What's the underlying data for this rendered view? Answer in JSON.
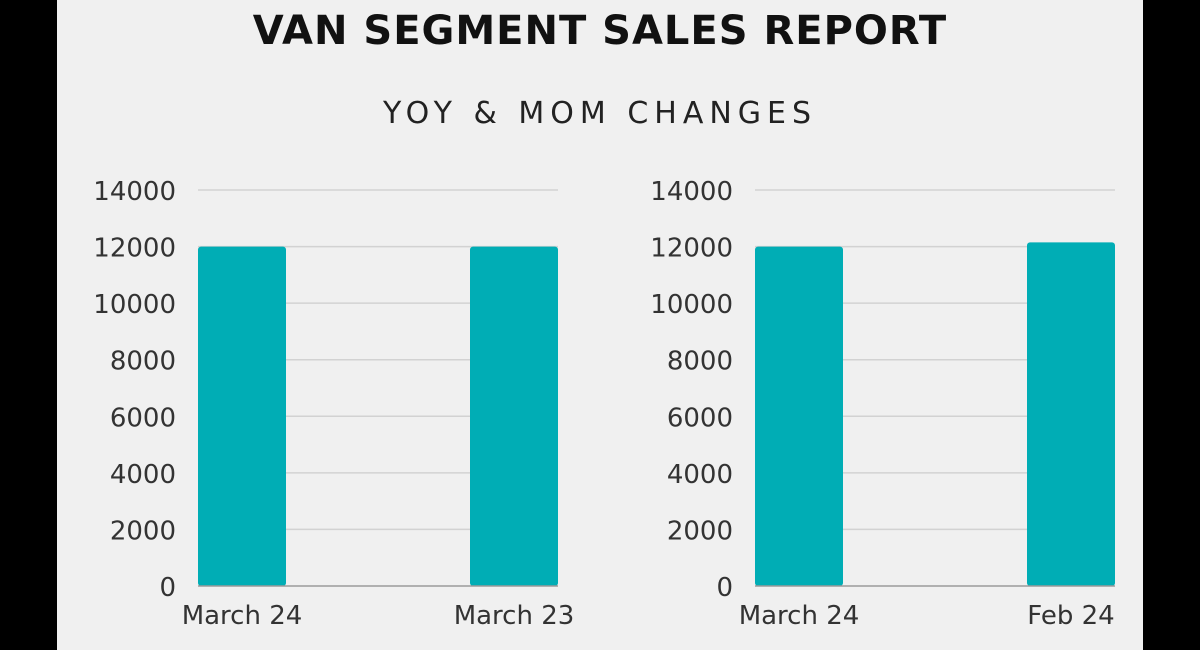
{
  "report": {
    "title": "VAN SEGMENT SALES REPORT",
    "subtitle": "YOY & MOM CHANGES"
  },
  "colors": {
    "bar": "#00adb5",
    "grid": "#d2d2d2",
    "axis": "#9a9a9a",
    "text": "#333333"
  },
  "chart_data": [
    {
      "type": "bar",
      "categories": [
        "March 24",
        "March 23"
      ],
      "values": [
        12000,
        12000
      ],
      "yticks": [
        0,
        2000,
        4000,
        6000,
        8000,
        10000,
        12000,
        14000
      ],
      "ylim": [
        0,
        14000
      ],
      "grid": true
    },
    {
      "type": "bar",
      "categories": [
        "March 24",
        "Feb 24"
      ],
      "values": [
        12000,
        12150
      ],
      "yticks": [
        0,
        2000,
        4000,
        6000,
        8000,
        10000,
        12000,
        14000
      ],
      "ylim": [
        0,
        14000
      ],
      "grid": true
    }
  ]
}
